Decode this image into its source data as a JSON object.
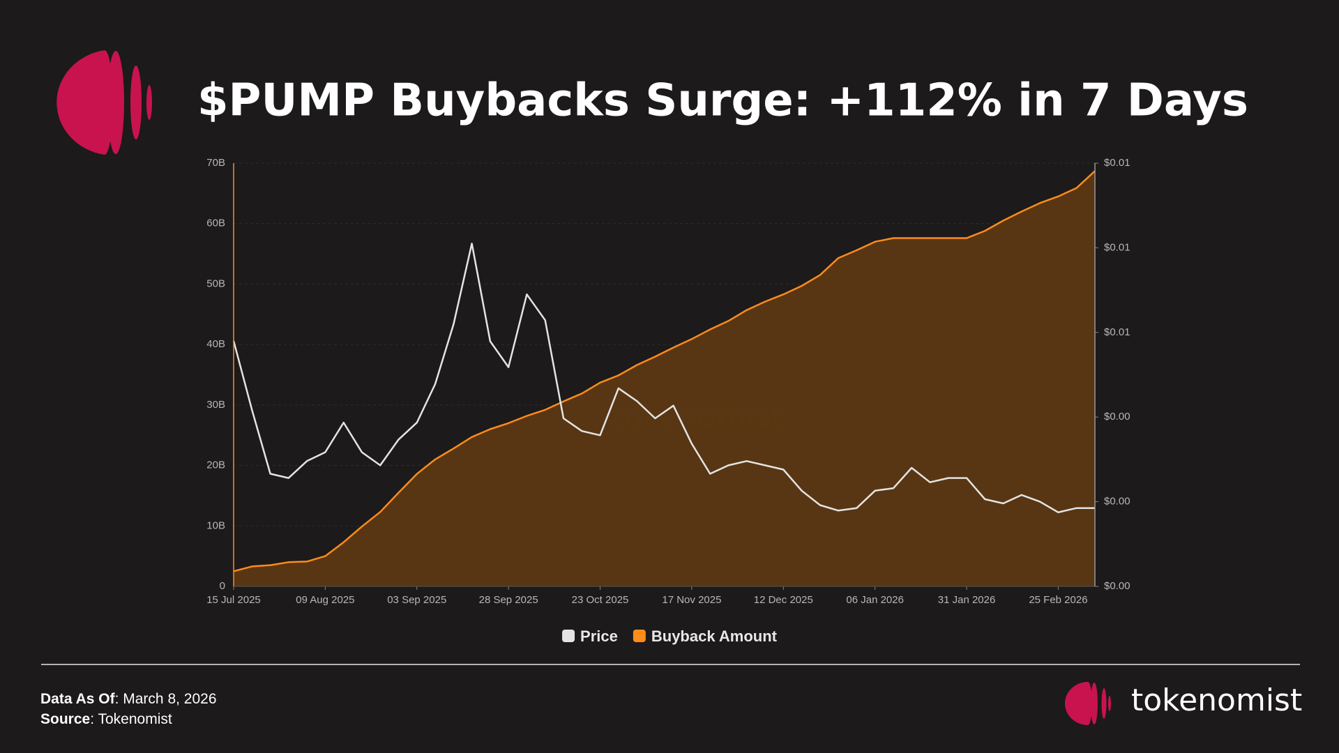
{
  "header": {
    "title": "$PUMP Buybacks Surge: +112% in 7 Days"
  },
  "chart_data": {
    "type": "line",
    "x": [
      "15 Jul 2025",
      "20 Jul 2025",
      "25 Jul 2025",
      "30 Jul 2025",
      "04 Aug 2025",
      "09 Aug 2025",
      "14 Aug 2025",
      "19 Aug 2025",
      "24 Aug 2025",
      "29 Aug 2025",
      "03 Sep 2025",
      "08 Sep 2025",
      "13 Sep 2025",
      "18 Sep 2025",
      "23 Sep 2025",
      "28 Sep 2025",
      "03 Oct 2025",
      "08 Oct 2025",
      "13 Oct 2025",
      "18 Oct 2025",
      "23 Oct 2025",
      "28 Oct 2025",
      "02 Nov 2025",
      "07 Nov 2025",
      "12 Nov 2025",
      "17 Nov 2025",
      "22 Nov 2025",
      "27 Nov 2025",
      "02 Dec 2025",
      "07 Dec 2025",
      "12 Dec 2025",
      "17 Dec 2025",
      "22 Dec 2025",
      "27 Dec 2025",
      "01 Jan 2026",
      "06 Jan 2026",
      "11 Jan 2026",
      "16 Jan 2026",
      "21 Jan 2026",
      "26 Jan 2026",
      "31 Jan 2026",
      "05 Feb 2026",
      "10 Feb 2026",
      "15 Feb 2026",
      "20 Feb 2026",
      "25 Feb 2026",
      "02 Mar 2026",
      "07 Mar 2026"
    ],
    "xlim": [
      "15 Jul 2025",
      "07 Mar 2026"
    ],
    "xticks": [
      "15 Jul 2025",
      "09 Aug 2025",
      "03 Sep 2025",
      "28 Sep 2025",
      "23 Oct 2025",
      "17 Nov 2025",
      "12 Dec 2025",
      "06 Jan 2026",
      "31 Jan 2026",
      "25 Feb 2026"
    ],
    "ylim": [
      0,
      70000000000
    ],
    "yticks": [
      0,
      {
        "value": 10000000000,
        "label": "10B"
      },
      {
        "value": 20000000000,
        "label": "20B"
      },
      {
        "value": 30000000000,
        "label": "30B"
      },
      {
        "value": 40000000000,
        "label": "40B"
      },
      {
        "value": 50000000000,
        "label": "50B"
      },
      {
        "value": 60000000000,
        "label": "60B"
      },
      {
        "value": 70000000000,
        "label": "70B"
      }
    ],
    "y2lim": [
      0,
      0.01
    ],
    "y2ticks": [
      {
        "value": 0,
        "label": "$0.00"
      },
      {
        "value": 0.002,
        "label": "$0.00"
      },
      {
        "value": 0.004,
        "label": "$0.00"
      },
      {
        "value": 0.006,
        "label": "$0.01"
      },
      {
        "value": 0.008,
        "label": "$0.01"
      },
      {
        "value": 0.01,
        "label": "$0.01"
      }
    ],
    "grid": true,
    "watermark": "tokenomist",
    "series": [
      {
        "name": "Price",
        "color": "#e4e4e4",
        "axis": "y2",
        "area": false,
        "values": [
          0.0058,
          0.00417,
          0.00266,
          0.00256,
          0.00296,
          0.00317,
          0.00387,
          0.00317,
          0.00286,
          0.00347,
          0.00387,
          0.00478,
          0.00619,
          0.0081,
          0.00579,
          0.00518,
          0.0069,
          0.00629,
          0.00397,
          0.00367,
          0.00357,
          0.00468,
          0.00438,
          0.00397,
          0.00427,
          0.00337,
          0.00266,
          0.00286,
          0.00296,
          0.00286,
          0.00276,
          0.00226,
          0.00192,
          0.00179,
          0.00185,
          0.00226,
          0.00232,
          0.0028,
          0.00246,
          0.00256,
          0.00256,
          0.00206,
          0.00196,
          0.00216,
          0.002,
          0.00175,
          0.00185,
          0.00185
        ]
      },
      {
        "name": "Buyback Amount",
        "color": "#ff8c1a",
        "axis": "y",
        "area": true,
        "fill": "#5c3813",
        "values": [
          2500000000.0,
          3300000000.0,
          3500000000.0,
          4000000000.0,
          4100000000.0,
          5000000000.0,
          7300000000.0,
          9900000000.0,
          12300000000.0,
          15500000000.0,
          18600000000.0,
          21000000000.0,
          22800000000.0,
          24700000000.0,
          26000000000.0,
          27000000000.0,
          28200000000.0,
          29200000000.0,
          30600000000.0,
          31900000000.0,
          33700000000.0,
          34900000000.0,
          36600000000.0,
          38000000000.0,
          39500000000.0,
          40900000000.0,
          42500000000.0,
          43900000000.0,
          45700000000.0,
          47100000000.0,
          48300000000.0,
          49700000000.0,
          51500000000.0,
          54300000000.0,
          55600000000.0,
          57000000000.0,
          57600000000.0,
          57600000000.0,
          57600000000.0,
          57600000000.0,
          57600000000.0,
          58800000000.0,
          60500000000.0,
          62000000000.0,
          63400000000.0,
          64500000000.0,
          65900000000.0,
          68700000000.0
        ]
      }
    ]
  },
  "footer": {
    "data_as_of": {
      "label": "Data As Of",
      "text": ": March 8, 2026"
    },
    "source": {
      "label": "Source",
      "text": ": Tokenomist"
    }
  },
  "brand": "tokenomist"
}
